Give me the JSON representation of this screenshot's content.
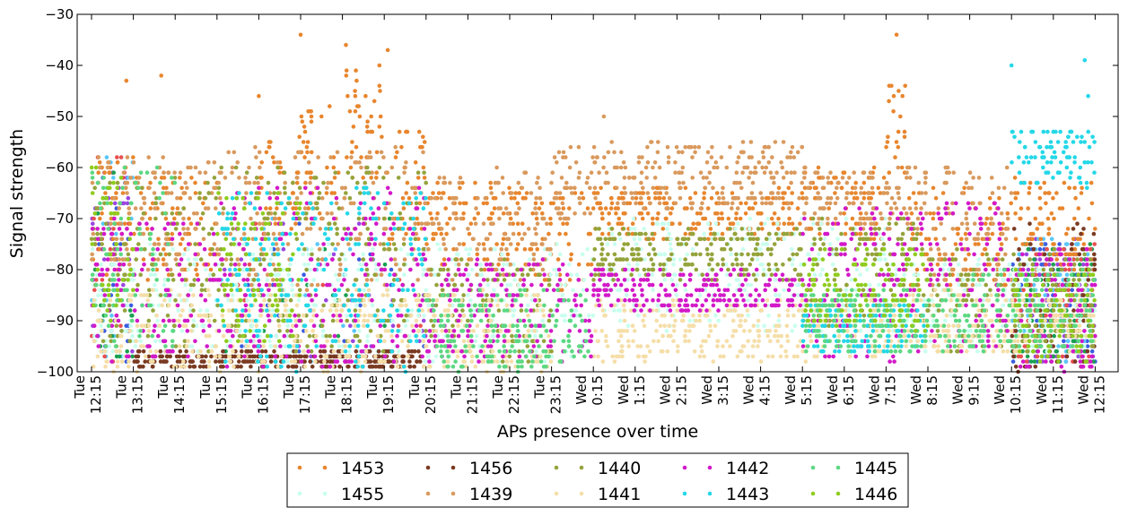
{
  "chart_data": {
    "type": "scatter",
    "title": "",
    "xlabel": "APs presence over time",
    "ylabel": "Signal strength",
    "ylim": [
      -100,
      -30
    ],
    "yticks": [
      -30,
      -40,
      -50,
      -60,
      -70,
      -80,
      -90,
      -100
    ],
    "ytick_labels": [
      "−30",
      "−40",
      "−50",
      "−60",
      "−70",
      "−80",
      "−90",
      "−100"
    ],
    "x_range": [
      "Tue 12:15",
      "Wed 12:55"
    ],
    "xtick_labels": [
      [
        "Tue",
        "12:15"
      ],
      [
        "Tue",
        "13:15"
      ],
      [
        "Tue",
        "14:15"
      ],
      [
        "Tue",
        "15:15"
      ],
      [
        "Tue",
        "16:15"
      ],
      [
        "Tue",
        "17:15"
      ],
      [
        "Tue",
        "18:15"
      ],
      [
        "Tue",
        "19:15"
      ],
      [
        "Tue",
        "20:15"
      ],
      [
        "Tue",
        "21:15"
      ],
      [
        "Tue",
        "22:15"
      ],
      [
        "Tue",
        "23:15"
      ],
      [
        "Wed",
        "0:15"
      ],
      [
        "Wed",
        "1:15"
      ],
      [
        "Wed",
        "2:15"
      ],
      [
        "Wed",
        "3:15"
      ],
      [
        "Wed",
        "4:15"
      ],
      [
        "Wed",
        "5:15"
      ],
      [
        "Wed",
        "6:15"
      ],
      [
        "Wed",
        "7:15"
      ],
      [
        "Wed",
        "8:15"
      ],
      [
        "Wed",
        "9:15"
      ],
      [
        "Wed",
        "10:15"
      ],
      [
        "Wed",
        "11:15"
      ],
      [
        "Wed",
        "12:15"
      ]
    ],
    "grid": false,
    "legend_position": "bottom-center",
    "series": [
      {
        "name": "1453",
        "color": "#e8862e",
        "pattern": [
          [
            "Tue 12:15",
            "Tue 13:15",
            -82,
            -58
          ],
          [
            "Tue 13:15",
            "Tue 15:15",
            -82,
            -62
          ],
          [
            "Tue 16:15",
            "Tue 17:15",
            -72,
            -54
          ],
          [
            "Tue 17:15",
            "Tue 18:15",
            -70,
            -48
          ],
          [
            "Tue 18:15",
            "Tue 19:15",
            -66,
            -40
          ],
          [
            "Tue 19:15",
            "Tue 20:15",
            -76,
            -52
          ],
          [
            "Tue 20:15",
            "Tue 22:15",
            -80,
            -62
          ],
          [
            "Tue 22:15",
            "Wed 0:15",
            -84,
            -64
          ],
          [
            "Wed 0:15",
            "Wed 5:15",
            -74,
            -64
          ],
          [
            "Wed 5:15",
            "Wed 7:15",
            -74,
            -60
          ],
          [
            "Wed 7:15",
            "Wed 7:45",
            -62,
            -42
          ],
          [
            "Wed 7:45",
            "Wed 10:15",
            -84,
            -64
          ],
          [
            "Wed 10:15",
            "Wed 11:15",
            -76,
            -62
          ],
          [
            "Wed 11:15",
            "Wed 12:15",
            -80,
            -62
          ]
        ],
        "points": [
          [
            "Tue 13:05",
            -43
          ],
          [
            "Tue 13:55",
            -42
          ],
          [
            "Tue 16:15",
            -46
          ],
          [
            "Tue 17:15",
            -34
          ],
          [
            "Tue 18:20",
            -36
          ],
          [
            "Tue 19:20",
            -37
          ],
          [
            "Wed 7:30",
            -34
          ]
        ]
      },
      {
        "name": "1455",
        "color": "#c8ffee",
        "pattern": [
          [
            "Tue 12:15",
            "Wed 0:15",
            -98,
            -75
          ],
          [
            "Wed 0:15",
            "Wed 7:15",
            -92,
            -70
          ],
          [
            "Wed 7:15",
            "Wed 12:15",
            -96,
            -78
          ]
        ],
        "points": []
      },
      {
        "name": "1456",
        "color": "#7a3a22",
        "pattern": [
          [
            "Wed 10:15",
            "Wed 12:15",
            -100,
            -70
          ],
          [
            "Tue 13:15",
            "Tue 20:15",
            -99,
            -96
          ]
        ],
        "points": []
      },
      {
        "name": "1439",
        "color": "#d99a5e",
        "pattern": [
          [
            "Tue 12:15",
            "Tue 15:15",
            -80,
            -58
          ],
          [
            "Tue 15:15",
            "Tue 20:15",
            -84,
            -56
          ],
          [
            "Tue 20:15",
            "Tue 23:15",
            -82,
            -60
          ],
          [
            "Tue 23:15",
            "Wed 0:15",
            -70,
            -56
          ],
          [
            "Wed 0:15",
            "Wed 5:15",
            -68,
            -55
          ],
          [
            "Wed 5:15",
            "Wed 8:15",
            -72,
            -60
          ],
          [
            "Wed 8:15",
            "Wed 10:15",
            -84,
            -60
          ]
        ],
        "points": [
          [
            "Wed 0:30",
            -50
          ]
        ]
      },
      {
        "name": "1440",
        "color": "#95a33b",
        "pattern": [
          [
            "Tue 12:15",
            "Tue 15:15",
            -96,
            -62
          ],
          [
            "Tue 15:15",
            "Tue 20:15",
            -96,
            -60
          ],
          [
            "Tue 20:15",
            "Tue 23:15",
            -98,
            -78
          ],
          [
            "Wed 0:15",
            "Wed 5:15",
            -82,
            -72
          ],
          [
            "Wed 5:15",
            "Wed 8:15",
            -92,
            -70
          ],
          [
            "Wed 8:15",
            "Wed 12:15",
            -96,
            -76
          ]
        ],
        "points": []
      },
      {
        "name": "1441",
        "color": "#f5dea8",
        "pattern": [
          [
            "Tue 12:15",
            "Tue 23:15",
            -100,
            -84
          ],
          [
            "Wed 0:15",
            "Wed 7:15",
            -98,
            -86
          ],
          [
            "Wed 7:15",
            "Wed 12:15",
            -96,
            -84
          ]
        ],
        "points": []
      },
      {
        "name": "1442",
        "color": "#d319c9",
        "pattern": [
          [
            "Tue 12:15",
            "Tue 15:15",
            -98,
            -70
          ],
          [
            "Tue 15:15",
            "Tue 20:15",
            -100,
            -64
          ],
          [
            "Tue 20:15",
            "Wed 0:15",
            -98,
            -78
          ],
          [
            "Wed 0:15",
            "Wed 5:15",
            -88,
            -80
          ],
          [
            "Wed 5:15",
            "Wed 8:15",
            -98,
            -68
          ],
          [
            "Wed 8:15",
            "Wed 10:15",
            -96,
            -66
          ],
          [
            "Wed 10:15",
            "Wed 12:15",
            -100,
            -76
          ]
        ],
        "points": []
      },
      {
        "name": "1443",
        "color": "#24d8e8",
        "pattern": [
          [
            "Wed 10:15",
            "Wed 12:15",
            -64,
            -52
          ],
          [
            "Tue 15:15",
            "Tue 20:15",
            -100,
            -64
          ],
          [
            "Wed 5:15",
            "Wed 8:15",
            -96,
            -86
          ]
        ],
        "points": [
          [
            "Wed 10:15",
            -40
          ],
          [
            "Wed 12:00",
            -39
          ],
          [
            "Wed 12:05",
            -46
          ]
        ]
      },
      {
        "name": "1445",
        "color": "#5cd882",
        "pattern": [
          [
            "Tue 12:15",
            "Tue 14:15",
            -96,
            -60
          ],
          [
            "Tue 20:15",
            "Wed 0:15",
            -100,
            -84
          ],
          [
            "Wed 5:15",
            "Wed 9:15",
            -96,
            -84
          ],
          [
            "Wed 9:15",
            "Wed 12:15",
            -96,
            -80
          ]
        ],
        "points": []
      },
      {
        "name": "1446",
        "color": "#8fcc1e",
        "pattern": [
          [
            "Tue 12:15",
            "Tue 13:15",
            -90,
            -60
          ],
          [
            "Tue 15:15",
            "Tue 17:15",
            -94,
            -64
          ],
          [
            "Wed 5:15",
            "Wed 8:15",
            -92,
            -76
          ],
          [
            "Wed 10:15",
            "Wed 12:15",
            -98,
            -80
          ]
        ],
        "points": []
      }
    ],
    "extra_unlabeled_colors": [
      "#3a5de0",
      "#9b45e0",
      "#5ac8f8",
      "#1aa050",
      "#e85050"
    ]
  }
}
